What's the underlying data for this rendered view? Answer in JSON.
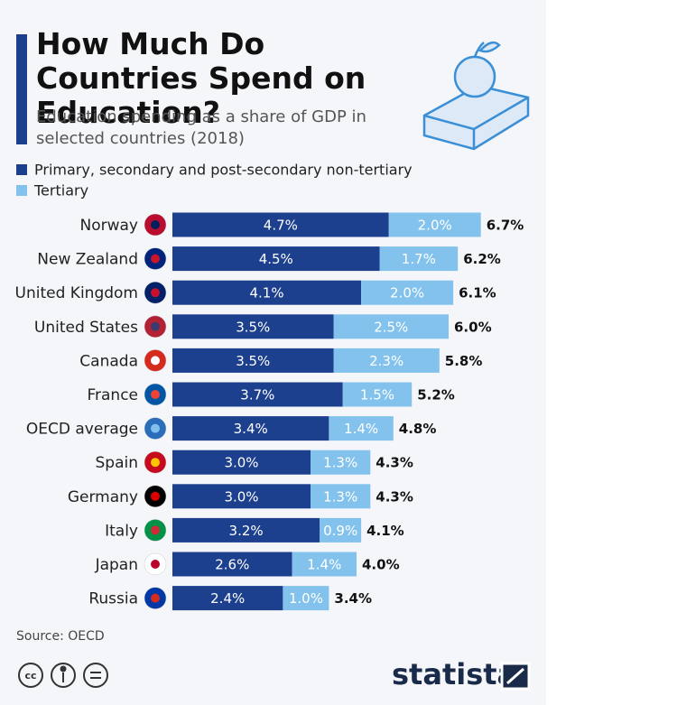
{
  "chart_data": {
    "type": "stacked-bar-horizontal",
    "title": "How Much Do Countries Spend on Education?",
    "subtitle": "Education spending as a share of GDP in selected countries (2018)",
    "categories": [
      "Norway",
      "New Zealand",
      "United Kingdom",
      "United States",
      "Canada",
      "France",
      "OECD average",
      "Spain",
      "Germany",
      "Italy",
      "Japan",
      "Russia"
    ],
    "series": [
      {
        "name": "Primary, secondary and post-secondary non-tertiary",
        "color": "#1c3f8e",
        "values": [
          4.7,
          4.5,
          4.1,
          3.5,
          3.5,
          3.7,
          3.4,
          3.0,
          3.0,
          3.2,
          2.6,
          2.4
        ],
        "value_labels": [
          "4.7%",
          "4.5%",
          "4.1%",
          "3.5%",
          "3.5%",
          "3.7%",
          "3.4%",
          "3.0%",
          "3.0%",
          "3.2%",
          "2.6%",
          "2.4%"
        ]
      },
      {
        "name": "Tertiary",
        "color": "#82c2ec",
        "values": [
          2.0,
          1.7,
          2.0,
          2.5,
          2.3,
          1.5,
          1.4,
          1.3,
          1.3,
          0.9,
          1.4,
          1.0
        ],
        "value_labels": [
          "2.0%",
          "1.7%",
          "2.0%",
          "2.5%",
          "2.3%",
          "1.5%",
          "1.4%",
          "1.3%",
          "1.3%",
          "0.9%",
          "1.4%",
          "1.0%"
        ]
      }
    ],
    "totals": [
      6.7,
      6.2,
      6.1,
      6.0,
      5.8,
      5.2,
      4.8,
      4.3,
      4.3,
      4.1,
      4.0,
      3.4
    ],
    "total_labels": [
      "6.7%",
      "6.2%",
      "6.1%",
      "6.0%",
      "5.8%",
      "5.2%",
      "4.8%",
      "4.3%",
      "4.3%",
      "4.1%",
      "4.0%",
      "3.4%"
    ],
    "source": "Source: OECD",
    "brand": "statista"
  }
}
